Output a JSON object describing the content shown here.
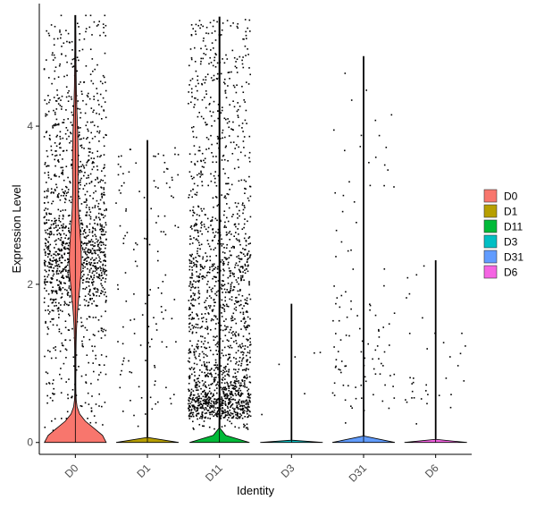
{
  "chart_data": {
    "type": "violin",
    "title": "",
    "xlabel": "Identity",
    "ylabel": "Expression Level",
    "categories": [
      "D0",
      "D1",
      "D11",
      "D3",
      "D31",
      "D6"
    ],
    "colors": [
      "#F8766D",
      "#B79F00",
      "#00BA38",
      "#00BFC4",
      "#619CFF",
      "#F564E3"
    ],
    "ylim": [
      -0.15,
      5.55
    ],
    "yticks": [
      0,
      2,
      4
    ],
    "max_values": [
      5.4,
      3.82,
      5.38,
      1.75,
      4.88,
      2.3
    ],
    "point_counts": [
      1500,
      130,
      1800,
      6,
      110,
      35
    ],
    "grid": false,
    "legend": {
      "position": "right",
      "entries": [
        "D0",
        "D1",
        "D11",
        "D3",
        "D31",
        "D6"
      ]
    }
  }
}
